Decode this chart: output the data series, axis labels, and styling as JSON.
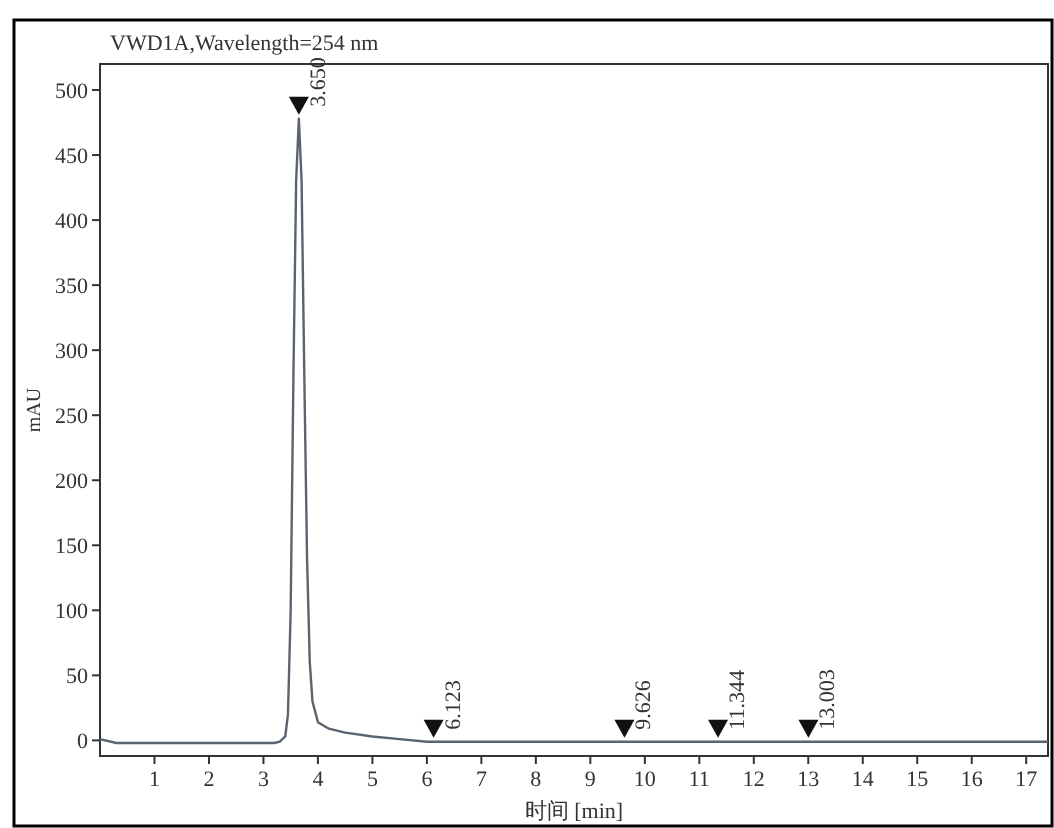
{
  "chart_data": {
    "type": "line",
    "title": "VWD1A,Wavelength=254 nm",
    "xlabel": "时间 [min]",
    "ylabel": "mAU",
    "xlim": [
      0,
      17.4
    ],
    "xticks": [
      1,
      2,
      3,
      4,
      5,
      6,
      7,
      8,
      9,
      10,
      11,
      12,
      13,
      14,
      15,
      16,
      17
    ],
    "ylim": [
      -12,
      520
    ],
    "yticks": [
      0,
      50,
      100,
      150,
      200,
      250,
      300,
      350,
      400,
      450,
      500
    ],
    "grid": false,
    "marker": "none",
    "line_style": "solid",
    "x": [
      0,
      0.3,
      1,
      2,
      3,
      3.2,
      3.3,
      3.4,
      3.45,
      3.5,
      3.55,
      3.6,
      3.65,
      3.7,
      3.75,
      3.8,
      3.85,
      3.9,
      4.0,
      4.2,
      4.5,
      5.0,
      5.5,
      6.0,
      6.5,
      8,
      10,
      12,
      14,
      16,
      17.4
    ],
    "series": [
      {
        "color": "#5a6470",
        "values": [
          1,
          -2,
          -2,
          -2,
          -2,
          -2,
          -1,
          3,
          20,
          100,
          280,
          430,
          478,
          430,
          280,
          140,
          60,
          30,
          14,
          9,
          6,
          3,
          1,
          -1,
          -1,
          -1,
          -1,
          -1,
          -1,
          -1,
          -1
        ]
      }
    ],
    "annotations": [
      {
        "text": "3.650",
        "x": 3.65,
        "y": 478
      },
      {
        "text": "6.123",
        "x": 6.123,
        "y": -1
      },
      {
        "text": "9.626",
        "x": 9.626,
        "y": -1
      },
      {
        "text": "11.344",
        "x": 11.344,
        "y": -1
      },
      {
        "text": "13.003",
        "x": 13.003,
        "y": -1
      }
    ]
  }
}
